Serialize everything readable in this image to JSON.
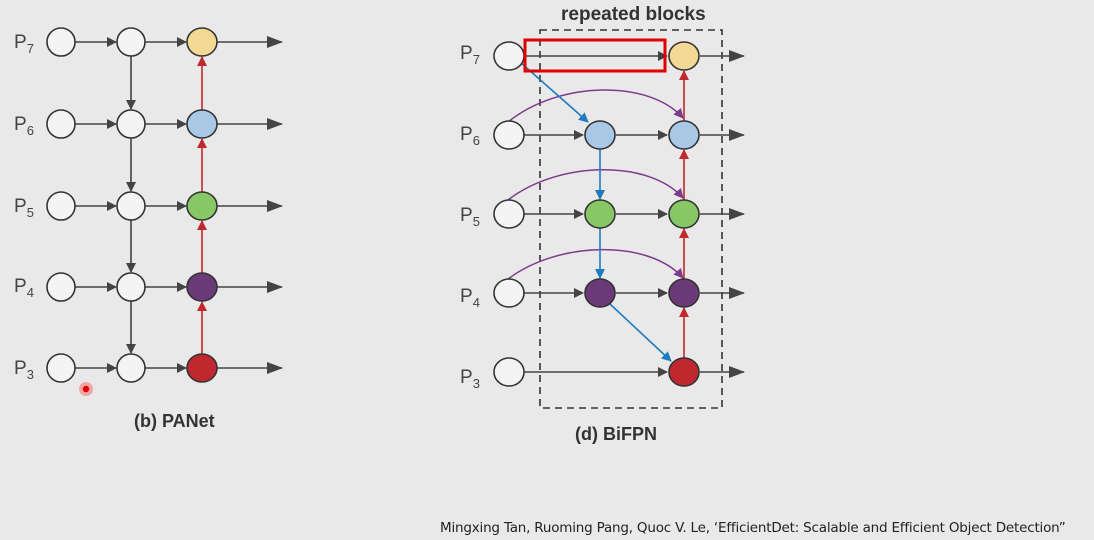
{
  "colors": {
    "p7": "#f3d994",
    "p6": "#a9c8e6",
    "p5": "#88c765",
    "p4": "#6b3a78",
    "p3": "#c0282f",
    "input": "#f4f4f4",
    "black_arrow": "#444444",
    "red_arrow": "#c0282f",
    "blue_arrow": "#1f7bbf",
    "purple_arrow": "#7d3b8c",
    "highlight_box": "#e00000"
  },
  "levels": [
    {
      "base": "P",
      "sub": "7"
    },
    {
      "base": "P",
      "sub": "6"
    },
    {
      "base": "P",
      "sub": "5"
    },
    {
      "base": "P",
      "sub": "4"
    },
    {
      "base": "P",
      "sub": "3"
    }
  ],
  "panet": {
    "caption": "(b) PANet"
  },
  "bifpn": {
    "caption": "(d) BiFPN",
    "repeated_label": "repeated blocks"
  },
  "citation": "Mingxing Tan, Ruoming Pang, Quoc V. Le, ‘EfficientDet: Scalable and Efficient Object Detection”"
}
